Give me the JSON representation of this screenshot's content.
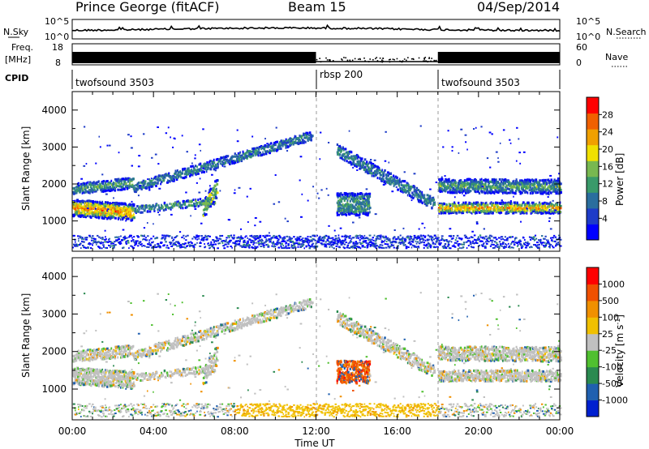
{
  "header": {
    "station": "Prince George (fitACF)",
    "beam": "Beam 15",
    "date": "04/Sep/2014"
  },
  "strip_noise": {
    "left_label": "N.Sky",
    "right_label": "N.Search",
    "left_ticks": [
      "10^5",
      "10^0"
    ],
    "right_ticks": [
      "10^5",
      "10^0"
    ]
  },
  "strip_freq": {
    "left_label_1": "Freq.",
    "left_label_2": "[MHz]",
    "right_label": "Nave",
    "left_ticks": [
      "18",
      "8"
    ],
    "right_ticks": [
      "60",
      "0"
    ]
  },
  "strip_cpid": {
    "label": "CPID",
    "segments": [
      {
        "start_hour": 0,
        "end_hour": 12,
        "text": "twofsound 3503"
      },
      {
        "start_hour": 12,
        "end_hour": 18,
        "text": "rbsp 200"
      },
      {
        "start_hour": 18,
        "end_hour": 24,
        "text": "twofsound 3503"
      }
    ]
  },
  "colorbar_power": {
    "label": "Power [dB]",
    "ticks": [
      "28",
      "24",
      "20",
      "16",
      "12",
      "8",
      "4"
    ],
    "colors": [
      "#0000ff",
      "#1e3cc8",
      "#2a6e9e",
      "#3a9a6a",
      "#78b850",
      "#f0e000",
      "#f0a000",
      "#f06000",
      "#ff0000"
    ]
  },
  "colorbar_velocity": {
    "label": "Velocity [m s",
    "label_sup": "-1",
    "label_end": "]",
    "ticks": [
      "1000",
      "500",
      "100",
      "25",
      "-25",
      "-100",
      "-500",
      "-1000"
    ],
    "colors": [
      "#ff0000",
      "#f05000",
      "#f09000",
      "#f0c000",
      "#c0c0c0",
      "#50c030",
      "#2a8a50",
      "#2060b0",
      "#0020d0"
    ]
  },
  "x_axis": {
    "label": "Time UT",
    "ticks": [
      "00:00",
      "04:00",
      "08:00",
      "12:00",
      "16:00",
      "20:00",
      "00:00"
    ]
  },
  "chart_data": {
    "type": "heatmap",
    "x_range_hours": [
      0,
      24
    ],
    "y_range_km": [
      180,
      4500
    ],
    "ylabel": "Slant Range [km]",
    "xlabel": "Time UT",
    "panels": [
      "Power [dB]",
      "Velocity [m s-1]"
    ],
    "power_range_db": [
      0,
      30
    ],
    "velocity_range_ms": [
      -1000,
      1000
    ]
  }
}
